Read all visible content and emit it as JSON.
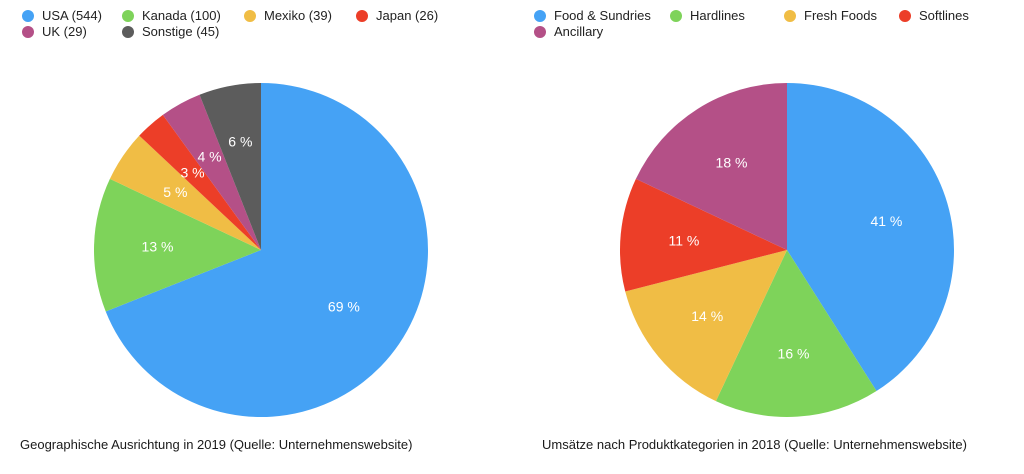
{
  "chart_data": [
    {
      "type": "pie",
      "caption": "Geographische Ausrichtung in 2019 (Quelle: Unternehmenswebsite)",
      "legend_position": "top",
      "categories": [
        "USA (544)",
        "Kanada (100)",
        "Mexiko (39)",
        "Japan (26)",
        "UK (29)",
        "Sonstige (45)"
      ],
      "values": [
        69,
        13,
        5,
        3,
        4,
        6
      ],
      "labels": [
        "69 %",
        "13 %",
        "5 %",
        "3 %",
        "4 %",
        "6 %"
      ],
      "colors": [
        "#45a2f5",
        "#7ed35a",
        "#f0bd45",
        "#ec3e28",
        "#b45087",
        "#5c5c5c"
      ]
    },
    {
      "type": "pie",
      "caption": "Umsätze nach Produktkategorien in 2018 (Quelle: Unternehmenswebsite)",
      "legend_position": "top",
      "categories": [
        "Food & Sundries",
        "Hardlines",
        "Fresh Foods",
        "Softlines",
        "Ancillary"
      ],
      "values": [
        41,
        16,
        14,
        11,
        18
      ],
      "labels": [
        "41 %",
        "16 %",
        "14 %",
        "11 %",
        "18 %"
      ],
      "colors": [
        "#45a2f5",
        "#7ed35a",
        "#f0bd45",
        "#ec3e28",
        "#b45087"
      ]
    }
  ]
}
